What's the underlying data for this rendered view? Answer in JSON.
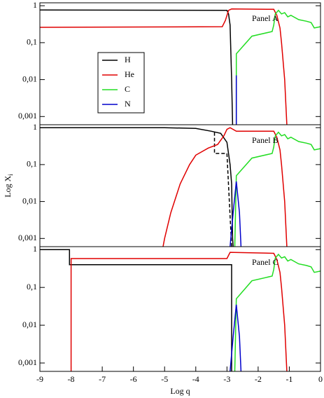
{
  "chart_data": [
    {
      "type": "line",
      "annotation": "Panel A",
      "xlim": [
        -9,
        0
      ],
      "ylim": [
        0.0006,
        1.2
      ],
      "log_y": true,
      "yticks": [
        {
          "value": 0.001,
          "label": "0,001"
        },
        {
          "value": 0.01,
          "label": "0,01"
        },
        {
          "value": 0.1,
          "label": "0,1"
        },
        1
      ],
      "legend": "upper left",
      "series": [
        {
          "name": "H",
          "color": "#000000",
          "x": [
            -9,
            -3.0,
            -2.95,
            -2.9,
            -2.85,
            -2.82
          ],
          "values": [
            0.77,
            0.75,
            0.6,
            0.3,
            0.01,
            0.0006
          ]
        },
        {
          "name": "He",
          "color": "#e00000",
          "x": [
            -9,
            -3.15,
            -3.05,
            -2.95,
            -2.85,
            -1.5,
            -1.4,
            -1.3,
            -1.25,
            -1.15,
            -1.08
          ],
          "values": [
            0.26,
            0.27,
            0.4,
            0.75,
            0.82,
            0.8,
            0.55,
            0.25,
            0.1,
            0.01,
            0.0006
          ]
        },
        {
          "name": "C",
          "color": "#22dd22",
          "x": [
            -2.7,
            -2.7,
            -2.2,
            -1.55,
            -1.5,
            -1.45,
            -1.35,
            -1.25,
            -1.15,
            -1.05,
            -0.95,
            -0.7,
            -0.45,
            -0.3,
            -0.2,
            0
          ],
          "values": [
            0.0006,
            0.05,
            0.15,
            0.2,
            0.3,
            0.6,
            0.75,
            0.6,
            0.65,
            0.5,
            0.55,
            0.42,
            0.38,
            0.35,
            0.25,
            0.27
          ]
        },
        {
          "name": "N",
          "color": "#0000cc",
          "x": [
            -2.7,
            -2.7
          ],
          "values": [
            0.0006,
            0.013
          ]
        }
      ]
    },
    {
      "type": "line",
      "annotation": "Panel B",
      "xlim": [
        -9,
        0
      ],
      "ylim": [
        0.0006,
        1.2
      ],
      "log_y": true,
      "yticks": [
        {
          "value": 0.001,
          "label": "0,001"
        },
        {
          "value": 0.01,
          "label": "0,01"
        },
        {
          "value": 0.1,
          "label": "0,1"
        },
        1
      ],
      "ylabel": "Log X",
      "ylabel_sub": "i",
      "series": [
        {
          "color": "#000000",
          "x": [
            -9,
            -5,
            -4,
            -3.5,
            -3.2,
            -3.0,
            -2.9,
            -2.85,
            -2.82,
            -2.8
          ],
          "values": [
            1,
            1,
            0.95,
            0.8,
            0.7,
            0.4,
            0.1,
            0.03,
            0.001,
            0.0006
          ]
        },
        {
          "color": "#000000",
          "dashed": true,
          "x": [
            -3.4,
            -3.4,
            -3.0,
            -2.85
          ],
          "values": [
            0.75,
            0.2,
            0.2,
            0.0006
          ]
        },
        {
          "color": "#e00000",
          "x": [
            -5.05,
            -5,
            -4.8,
            -4.5,
            -4.2,
            -4,
            -3.6,
            -3.3,
            -3.1,
            -3.0,
            -2.9,
            -2.7,
            -1.5,
            -1.4,
            -1.3,
            -1.25,
            -1.15,
            -1.08
          ],
          "values": [
            0.0006,
            0.001,
            0.005,
            0.03,
            0.1,
            0.18,
            0.28,
            0.35,
            0.6,
            0.9,
            1.0,
            0.8,
            0.8,
            0.55,
            0.25,
            0.1,
            0.01,
            0.0006
          ]
        },
        {
          "color": "#22dd22",
          "x": [
            -2.75,
            -2.7,
            -2.2,
            -1.55,
            -1.5,
            -1.45,
            -1.35,
            -1.25,
            -1.15,
            -1.05,
            -0.95,
            -0.7,
            -0.45,
            -0.3,
            -0.2,
            0
          ],
          "values": [
            0.0006,
            0.05,
            0.15,
            0.2,
            0.3,
            0.6,
            0.75,
            0.6,
            0.65,
            0.5,
            0.55,
            0.42,
            0.38,
            0.35,
            0.25,
            0.27
          ]
        },
        {
          "color": "#0000cc",
          "x": [
            -2.9,
            -2.8,
            -2.7,
            -2.6,
            -2.55
          ],
          "values": [
            0.0006,
            0.005,
            0.035,
            0.005,
            0.0006
          ]
        }
      ]
    },
    {
      "type": "line",
      "annotation": "Panel C",
      "xlim": [
        -9,
        0
      ],
      "ylim": [
        0.0006,
        1.2
      ],
      "log_y": true,
      "yticks": [
        {
          "value": 0.001,
          "label": "0,001"
        },
        {
          "value": 0.01,
          "label": "0,01"
        },
        {
          "value": 0.1,
          "label": "0,1"
        },
        1
      ],
      "xticks": [
        -9,
        -8,
        -7,
        -6,
        -5,
        -4,
        -3,
        -2,
        -1,
        0
      ],
      "xlabel": "Log q",
      "series": [
        {
          "color": "#000000",
          "x": [
            -9,
            -8.05,
            -8.05,
            -2.85,
            -2.85
          ],
          "values": [
            1,
            1,
            0.4,
            0.4,
            0.0006
          ]
        },
        {
          "color": "#e00000",
          "x": [
            -8,
            -8,
            -3.0,
            -2.9,
            -1.5,
            -1.4,
            -1.3,
            -1.25,
            -1.15,
            -1.08
          ],
          "values": [
            0.0006,
            0.58,
            0.58,
            0.85,
            0.8,
            0.55,
            0.25,
            0.1,
            0.01,
            0.0006
          ]
        },
        {
          "color": "#22dd22",
          "x": [
            -2.75,
            -2.7,
            -2.2,
            -1.55,
            -1.5,
            -1.45,
            -1.35,
            -1.25,
            -1.15,
            -1.05,
            -0.95,
            -0.7,
            -0.45,
            -0.3,
            -0.2,
            0
          ],
          "values": [
            0.0006,
            0.05,
            0.15,
            0.2,
            0.3,
            0.6,
            0.75,
            0.6,
            0.65,
            0.5,
            0.55,
            0.42,
            0.38,
            0.35,
            0.25,
            0.27
          ]
        },
        {
          "color": "#0000cc",
          "x": [
            -2.9,
            -2.8,
            -2.7,
            -2.6,
            -2.55
          ],
          "values": [
            0.0006,
            0.005,
            0.035,
            0.005,
            0.0006
          ]
        }
      ]
    }
  ]
}
